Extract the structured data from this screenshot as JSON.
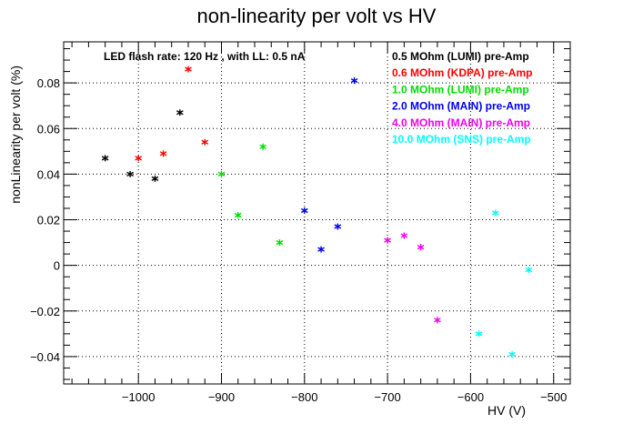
{
  "chart_data": {
    "type": "scatter",
    "title": "non-linearity per volt vs HV",
    "xlabel": "HV (V)",
    "ylabel": "nonLinearity per volt (%)",
    "xlim": [
      -1090,
      -480
    ],
    "ylim": [
      -0.052,
      0.098
    ],
    "x_ticks": [
      -1000,
      -900,
      -800,
      -700,
      -600,
      -500
    ],
    "y_ticks": [
      -0.04,
      -0.02,
      0,
      0.02,
      0.04,
      0.06,
      0.08
    ],
    "x_tick_labels": [
      "−1000",
      "−900",
      "−800",
      "−700",
      "−600",
      "−500"
    ],
    "y_tick_labels": [
      "−0.04",
      "−0.02",
      "0",
      "0.02",
      "0.04",
      "0.06",
      "0.08"
    ],
    "grid": true,
    "legend_position": "top-right",
    "annotation": "LED flash rate: 120 Hz , with LL: 0.5 nA",
    "series": [
      {
        "name": "0.5 MOhm (LUMI) pre-Amp",
        "color": "#000000",
        "points": [
          [
            -1040,
            0.047
          ],
          [
            -1010,
            0.04
          ],
          [
            -980,
            0.038
          ],
          [
            -950,
            0.067
          ]
        ]
      },
      {
        "name": "0.6 MOhm (KDPA) pre-Amp",
        "color": "#ff0000",
        "points": [
          [
            -1000,
            0.047
          ],
          [
            -970,
            0.049
          ],
          [
            -940,
            0.086
          ],
          [
            -920,
            0.054
          ]
        ]
      },
      {
        "name": "1.0 MOhm (LUMI) pre-Amp",
        "color": "#00dd00",
        "points": [
          [
            -900,
            0.04
          ],
          [
            -880,
            0.022
          ],
          [
            -850,
            0.052
          ],
          [
            -830,
            0.01
          ]
        ]
      },
      {
        "name": "2.0 MOhm (MAIN) pre-Amp",
        "color": "#0000ee",
        "points": [
          [
            -800,
            0.024
          ],
          [
            -780,
            0.007
          ],
          [
            -760,
            0.017
          ],
          [
            -740,
            0.081
          ]
        ]
      },
      {
        "name": "4.0 MOhm (MAIN) pre-Amp",
        "color": "#ee00ee",
        "points": [
          [
            -700,
            0.011
          ],
          [
            -680,
            0.013
          ],
          [
            -660,
            0.008
          ],
          [
            -640,
            -0.024
          ]
        ]
      },
      {
        "name": "10.0 MOhm (SNS) pre-Amp",
        "color": "#00ffff",
        "points": [
          [
            -590,
            -0.03
          ],
          [
            -570,
            0.023
          ],
          [
            -550,
            -0.039
          ],
          [
            -530,
            -0.002
          ]
        ]
      }
    ]
  }
}
